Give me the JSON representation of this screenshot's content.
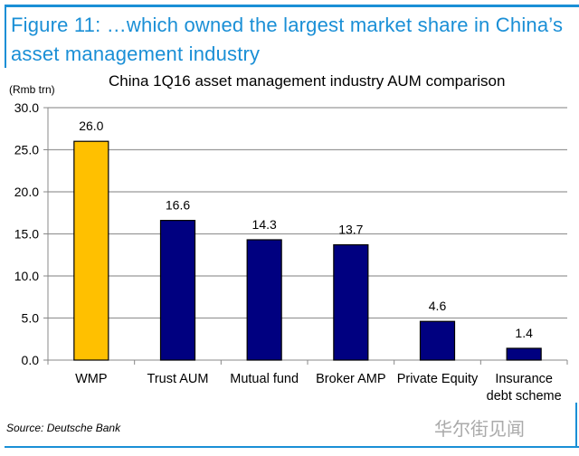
{
  "figure_title": "Figure 11: …which owned the largest market share in China’s asset management industry",
  "source": "Source: Deutsche Bank",
  "watermark": "华尔街见闻",
  "chart_data": {
    "type": "bar",
    "title": "China 1Q16 asset management industry AUM comparison",
    "ylabel": "(Rmb trn)",
    "xlabel": "",
    "ylim": [
      0,
      30
    ],
    "yticks": [
      "0.0",
      "5.0",
      "10.0",
      "15.0",
      "20.0",
      "25.0",
      "30.0"
    ],
    "ytick_values": [
      0,
      5,
      10,
      15,
      20,
      25,
      30
    ],
    "grid": true,
    "categories": [
      "WMP",
      "Trust AUM",
      "Mutual fund",
      "Broker AMP",
      "Private Equity",
      "Insurance debt scheme"
    ],
    "category_lines": [
      [
        "WMP"
      ],
      [
        "Trust AUM"
      ],
      [
        "Mutual fund"
      ],
      [
        "Broker AMP"
      ],
      [
        "Private Equity"
      ],
      [
        "Insurance",
        "debt scheme"
      ]
    ],
    "values": [
      26.0,
      16.6,
      14.3,
      13.7,
      4.6,
      1.4
    ],
    "data_labels": [
      "26.0",
      "16.6",
      "14.3",
      "13.7",
      "4.6",
      "1.4"
    ],
    "colors": [
      "#FFC000",
      "#000080",
      "#000080",
      "#000080",
      "#000080",
      "#000080"
    ]
  }
}
